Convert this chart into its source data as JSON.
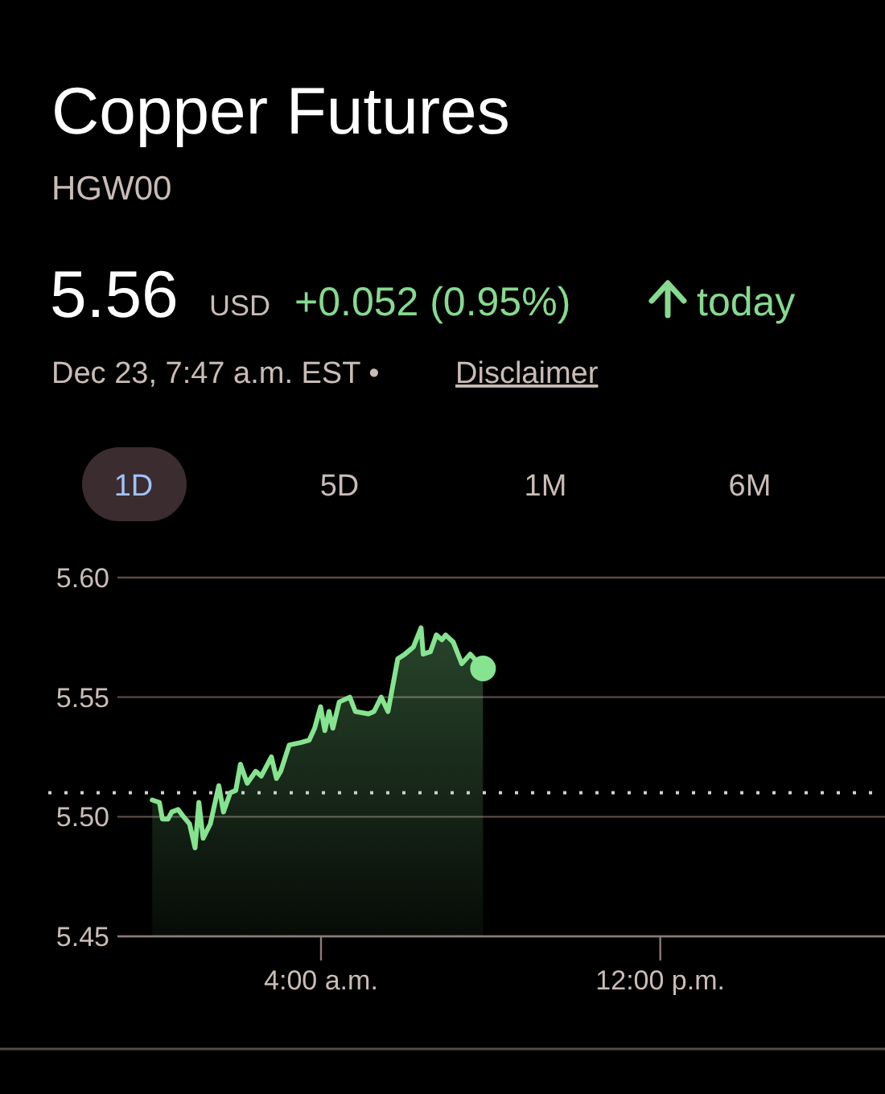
{
  "chart_data": {
    "type": "area",
    "title": "Copper Futures",
    "subtitle": "HGW00",
    "annotations": [
      "5.56",
      "USD",
      "+0.052 (0.95%)",
      "today",
      "Dec 23, 7:47 a.m. EST •",
      "Disclaimer",
      "1D",
      "5D",
      "1M",
      "6M"
    ],
    "xlim": [
      -0.8,
      17.3
    ],
    "xticks": [
      {
        "value": 4,
        "label": "4:00 a.m."
      },
      {
        "value": 12,
        "label": "12:00 p.m."
      }
    ],
    "ylim": [
      5.45,
      5.6
    ],
    "yticks": [
      {
        "value": 5.45,
        "label": "5.45"
      },
      {
        "value": 5.5,
        "label": "5.50"
      },
      {
        "value": 5.55,
        "label": "5.55"
      },
      {
        "value": 5.6,
        "label": "5.60"
      }
    ],
    "grid": "y",
    "marker": "none",
    "line_style": "solid",
    "ref_lines": [
      {
        "axis": "y",
        "value": 5.51,
        "label": null,
        "line_style": "dotted",
        "color": "#d8d0cc"
      }
    ],
    "series": [
      {
        "color": "#86e38f",
        "x": [
          0.02,
          0.19,
          0.26,
          0.39,
          0.48,
          0.63,
          0.76,
          0.9,
          1.03,
          1.12,
          1.22,
          1.39,
          1.59,
          1.7,
          1.86,
          1.99,
          2.1,
          2.26,
          2.46,
          2.59,
          2.83,
          2.95,
          3.05,
          3.25,
          3.52,
          3.72,
          3.85,
          3.99,
          4.09,
          4.19,
          4.28,
          4.43,
          4.68,
          4.81,
          5.12,
          5.25,
          5.42,
          5.58,
          5.81,
          5.98,
          6.18,
          6.36,
          6.41,
          6.58,
          6.72,
          6.85,
          6.94,
          7.12,
          7.32,
          7.52,
          7.82
        ],
        "values": [
          5.507,
          5.506,
          5.499,
          5.499,
          5.502,
          5.503,
          5.5,
          5.497,
          5.487,
          5.506,
          5.491,
          5.497,
          5.513,
          5.502,
          5.51,
          5.511,
          5.522,
          5.514,
          5.519,
          5.517,
          5.525,
          5.516,
          5.519,
          5.53,
          5.531,
          5.532,
          5.537,
          5.546,
          5.536,
          5.544,
          5.537,
          5.548,
          5.55,
          5.544,
          5.543,
          5.544,
          5.55,
          5.544,
          5.566,
          5.568,
          5.571,
          5.579,
          5.568,
          5.569,
          5.576,
          5.574,
          5.576,
          5.573,
          5.564,
          5.568,
          5.562
        ]
      }
    ]
  }
}
